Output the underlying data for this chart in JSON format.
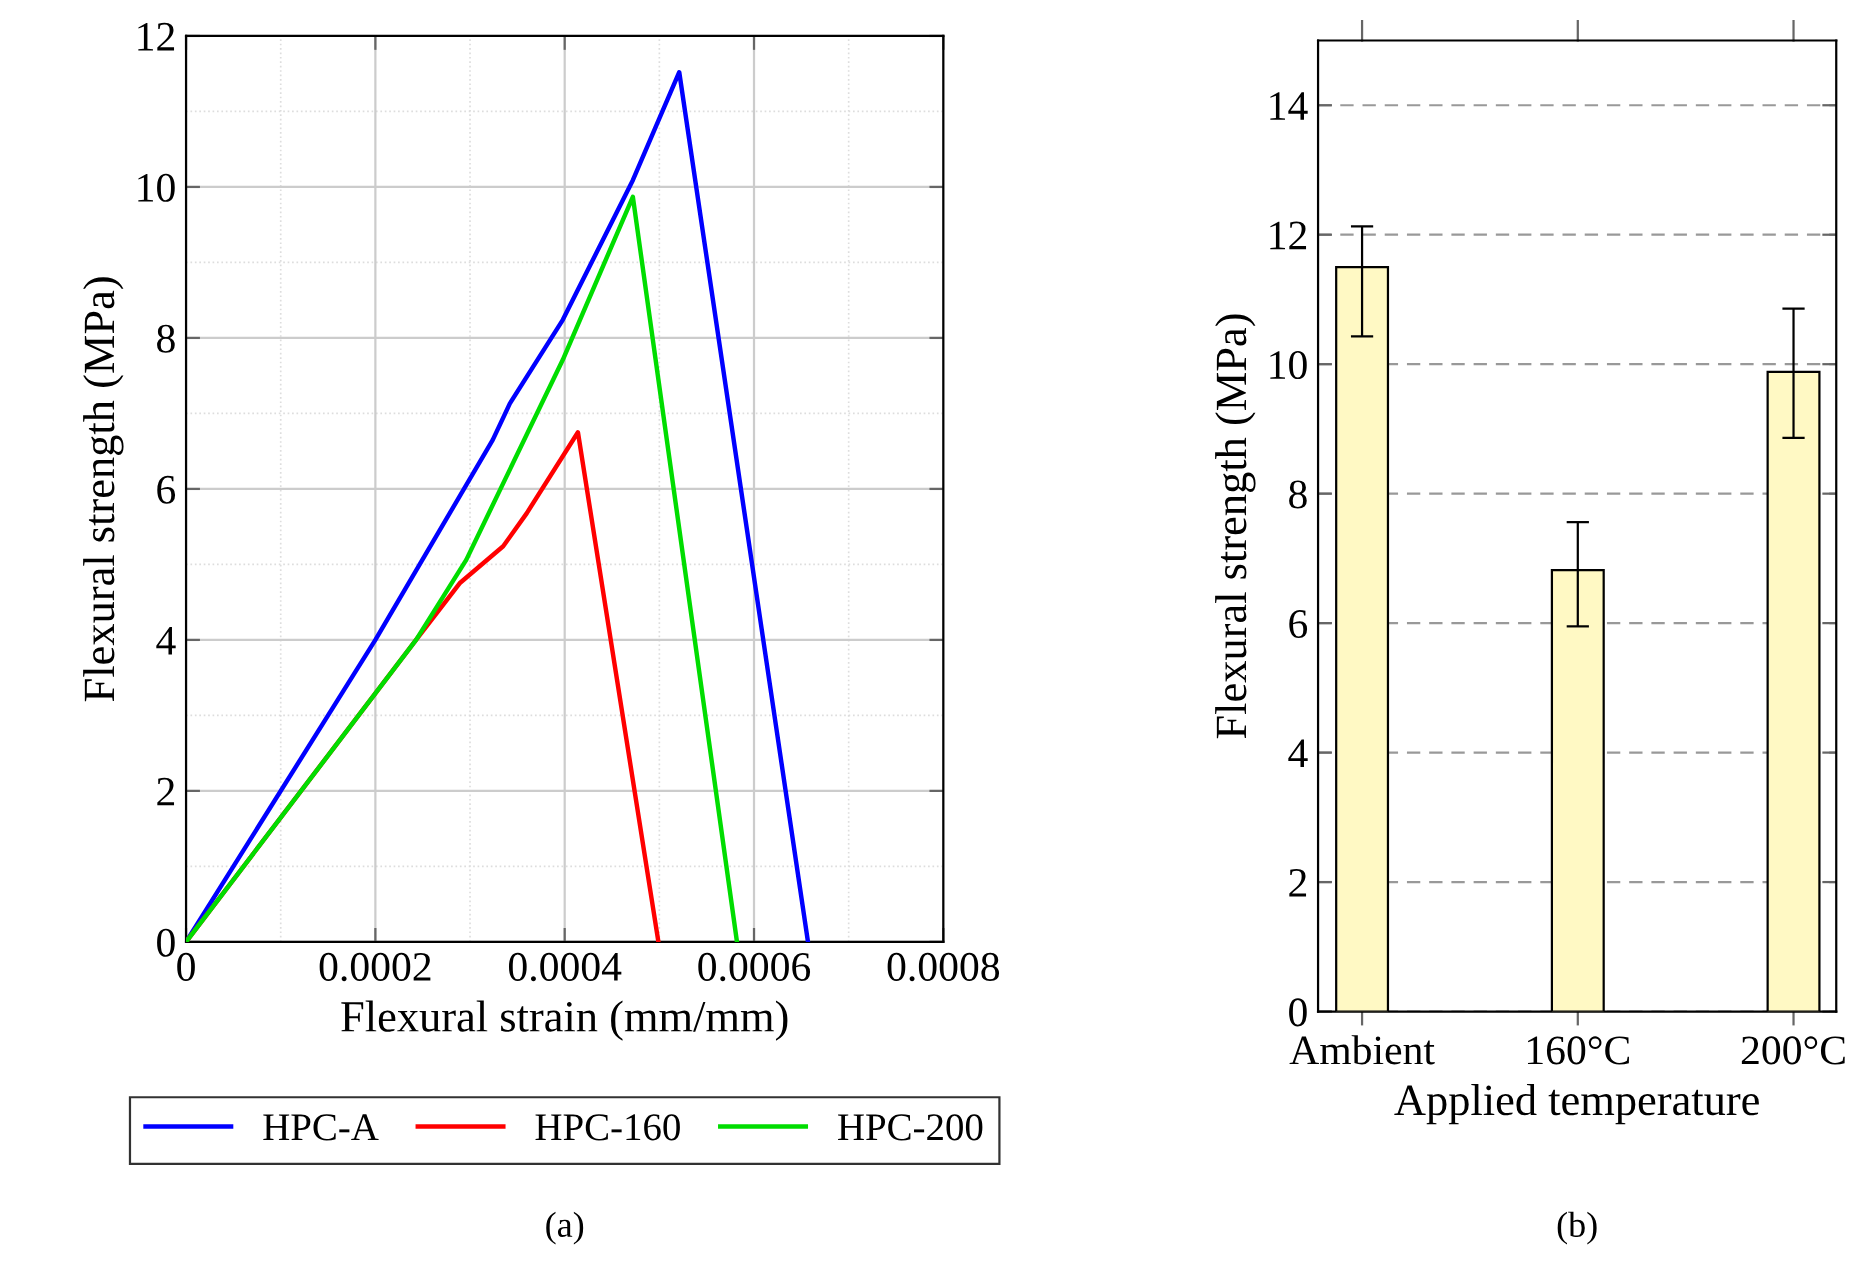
{
  "chart_data": [
    {
      "type": "line",
      "xlabel": "Flexural strain (mm/mm)",
      "ylabel": "Flexural strength (MPa)",
      "xlim": [
        0,
        0.0008
      ],
      "ylim": [
        0,
        12
      ],
      "xticks": [
        0,
        0.0002,
        0.0004,
        0.0006,
        0.0008
      ],
      "yticks": [
        0,
        2,
        4,
        6,
        8,
        10,
        12
      ],
      "grid": true,
      "legend": "bottom",
      "line_style": "solid",
      "marker": "none",
      "annotations": [
        "(a)"
      ],
      "series": [
        {
          "name": "HPC-A",
          "color": "#0000ff",
          "x": [
            0,
            0.0002,
            0.000324,
            0.000342,
            0.000398,
            0.000472,
            0.000521,
            0.000657
          ],
          "values": [
            0,
            4.0,
            6.65,
            7.13,
            8.24,
            10.09,
            11.52,
            0
          ]
        },
        {
          "name": "HPC-160",
          "color": "#ff0000",
          "x": [
            0,
            0.000243,
            0.000289,
            0.000335,
            0.00036,
            0.000414,
            0.000499
          ],
          "values": [
            0,
            4.0,
            4.75,
            5.24,
            5.68,
            6.75,
            0
          ]
        },
        {
          "name": "HPC-200",
          "color": "#00dd00",
          "x": [
            0,
            0.000243,
            0.000296,
            0.000398,
            0.000472,
            0.000582
          ],
          "values": [
            0,
            4.0,
            5.06,
            7.71,
            9.87,
            0
          ]
        }
      ]
    },
    {
      "type": "bar",
      "xlabel": "Applied temperature",
      "ylabel": "Flexural strength (MPa)",
      "categories": [
        "Ambient",
        "160°C",
        "200°C"
      ],
      "values": [
        11.5,
        6.82,
        9.88
      ],
      "color": "#fff9c4",
      "errors": [
        [
          10.43,
          12.13
        ],
        [
          5.95,
          7.56
        ],
        [
          8.86,
          10.86
        ]
      ],
      "ylim": [
        0,
        15
      ],
      "yticks": [
        0,
        2,
        4,
        6,
        8,
        10,
        12,
        14
      ],
      "grid": "y",
      "annotations": [
        "(b)"
      ]
    }
  ]
}
